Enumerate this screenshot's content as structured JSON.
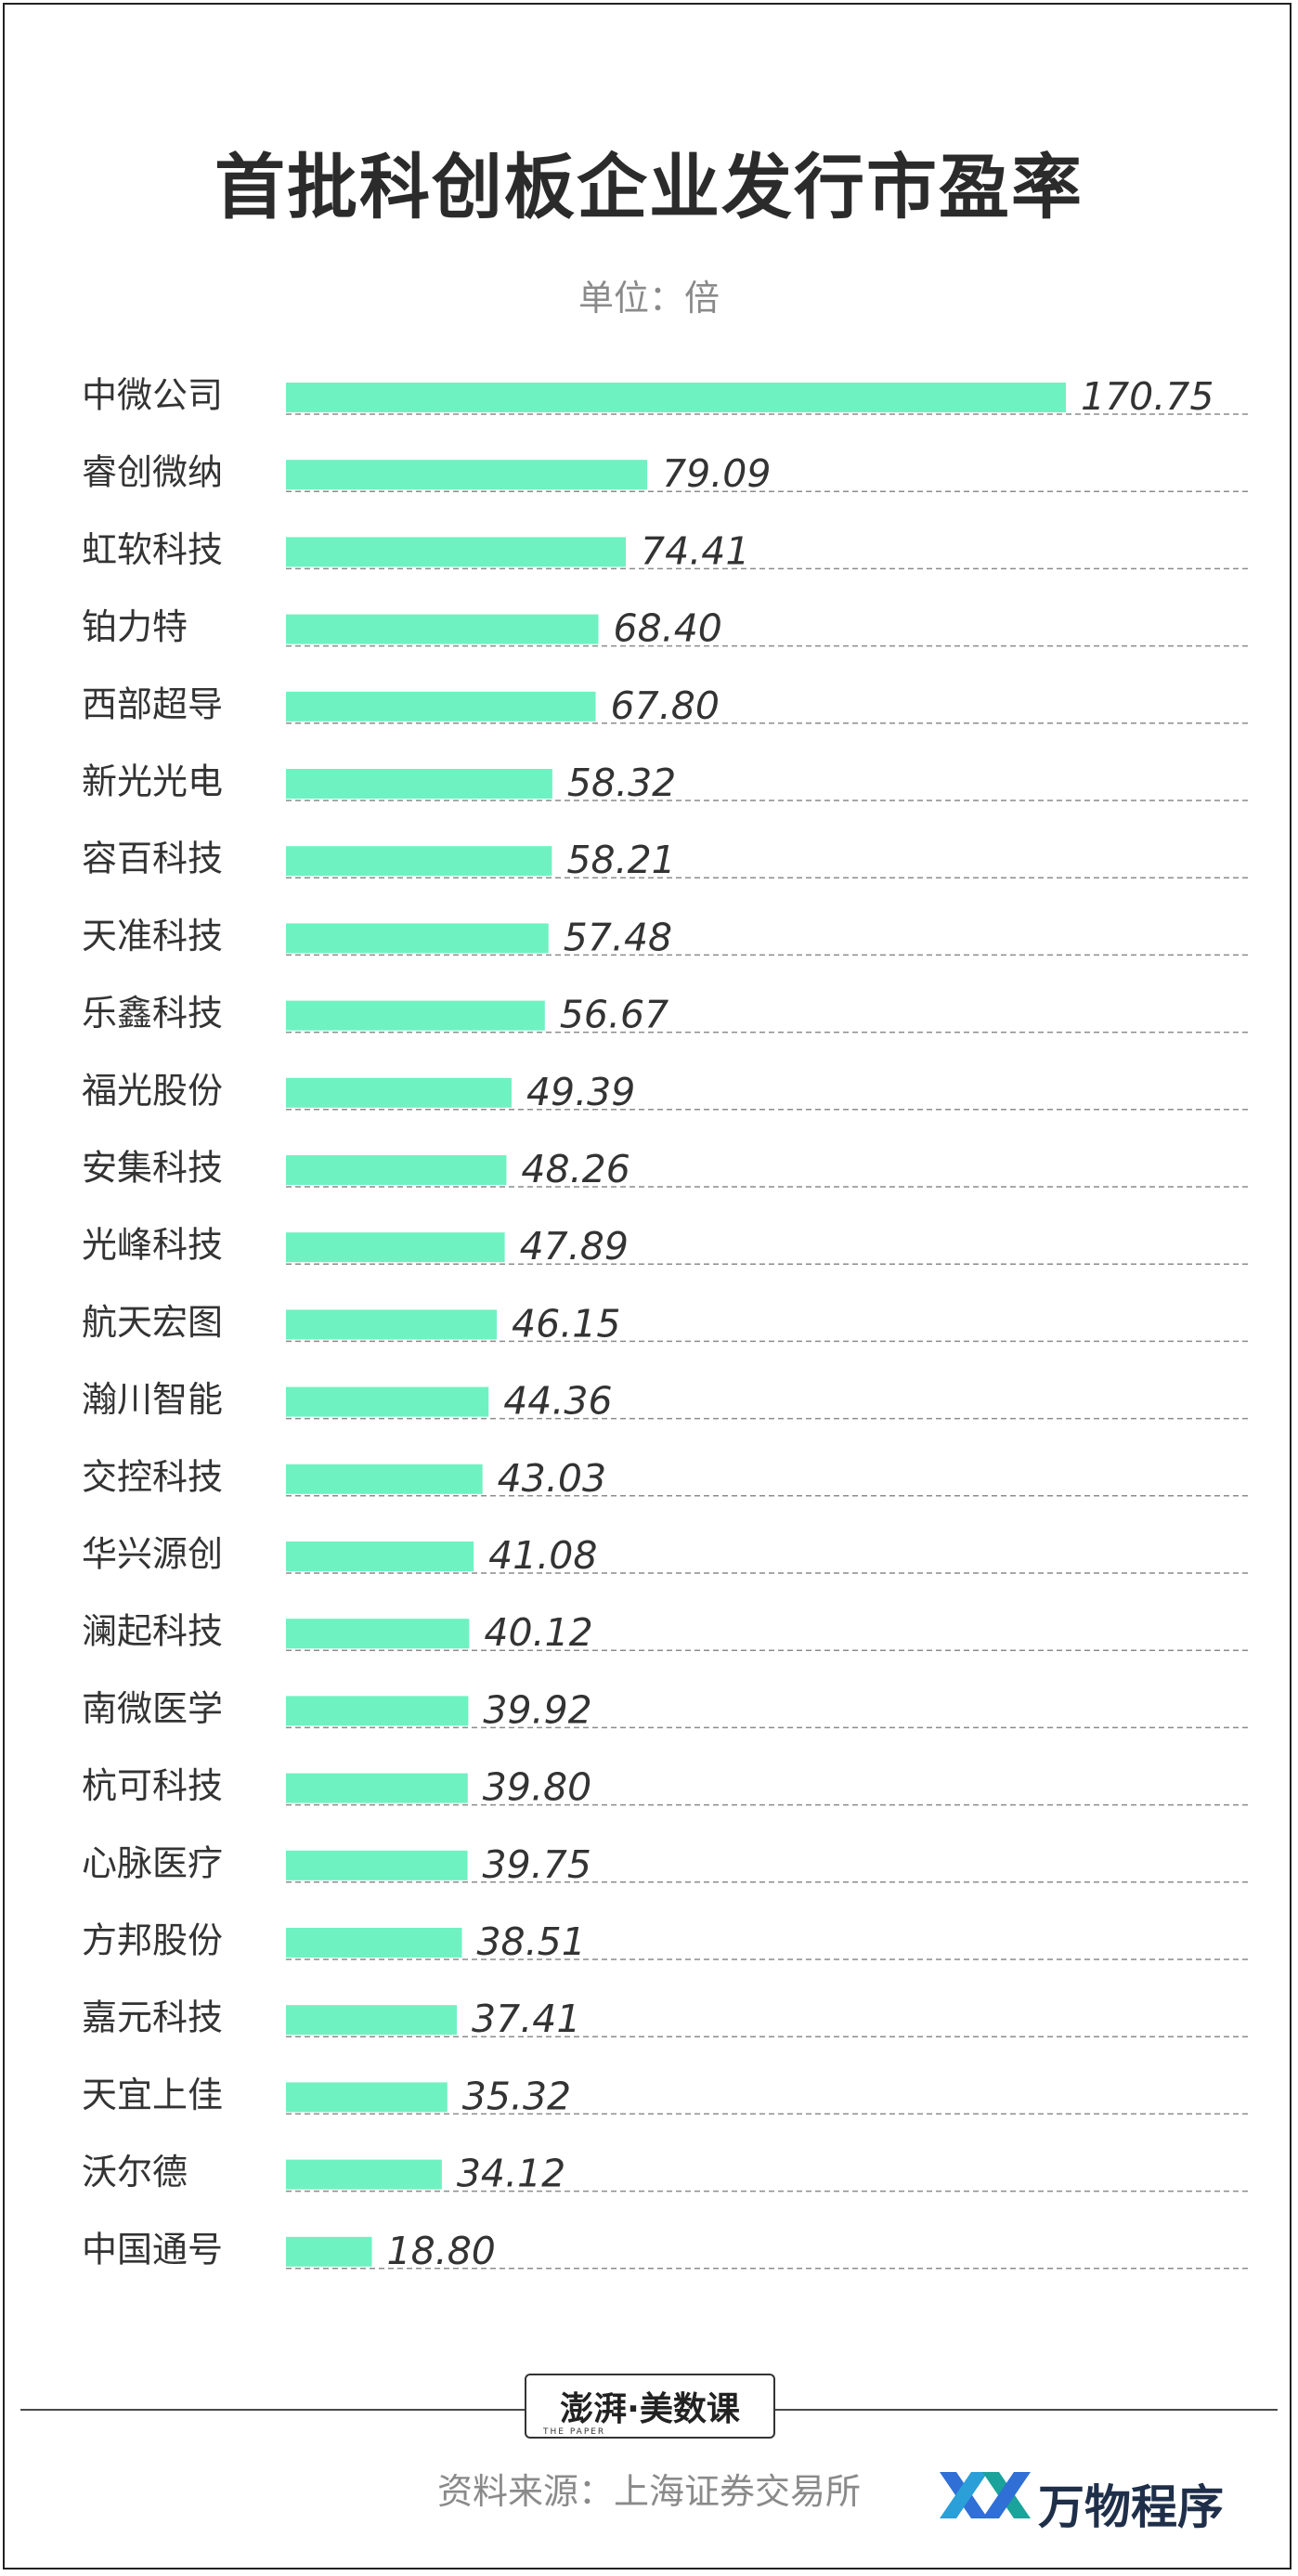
{
  "title": "首批科创板企业发行市盈率",
  "unit": "单位：倍",
  "source": "资料来源：上海证券交易所",
  "brand": {
    "main": "澎湃·美数课",
    "sub": "THE PAPER"
  },
  "watermark": {
    "text": "万物程序"
  },
  "colors": {
    "bar": "#6ef2c1",
    "text": "#333333",
    "grid": "#8c8c8c"
  },
  "chart_data": {
    "type": "bar",
    "orientation": "horizontal",
    "title": "首批科创板企业发行市盈率",
    "unit": "单位：倍",
    "categories": [
      "中微公司",
      "睿创微纳",
      "虹软科技",
      "铂力特",
      "西部超导",
      "新光光电",
      "容百科技",
      "天准科技",
      "乐鑫科技",
      "福光股份",
      "安集科技",
      "光峰科技",
      "航天宏图",
      "瀚川智能",
      "交控科技",
      "华兴源创",
      "澜起科技",
      "南微医学",
      "杭可科技",
      "心脉医疗",
      "方邦股份",
      "嘉元科技",
      "天宜上佳",
      "沃尔德",
      "中国通号"
    ],
    "values": [
      170.75,
      79.09,
      74.41,
      68.4,
      67.8,
      58.32,
      58.21,
      57.48,
      56.67,
      49.39,
      48.26,
      47.89,
      46.15,
      44.36,
      43.03,
      41.08,
      40.12,
      39.92,
      39.8,
      39.75,
      38.51,
      37.41,
      35.32,
      34.12,
      18.8
    ],
    "value_labels": [
      "170.75",
      "79.09",
      "74.41",
      "68.40",
      "67.80",
      "58.32",
      "58.21",
      "57.48",
      "56.67",
      "49.39",
      "48.26",
      "47.89",
      "46.15",
      "44.36",
      "43.03",
      "41.08",
      "40.12",
      "39.92",
      "39.80",
      "39.75",
      "38.51",
      "37.41",
      "35.32",
      "34.12",
      "18.80"
    ],
    "xlim": [
      0,
      170.75
    ],
    "grid": "dashed line under each row",
    "legend": "none"
  }
}
